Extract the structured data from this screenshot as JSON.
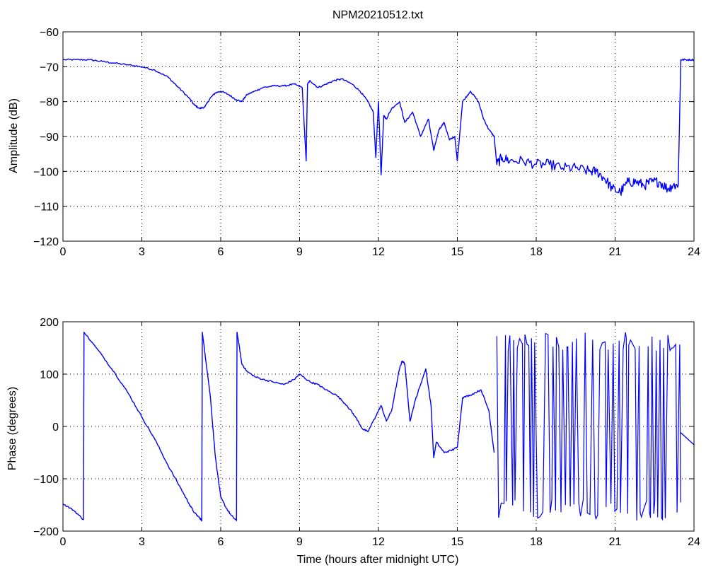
{
  "chart_data": [
    {
      "type": "line",
      "title": "NPM20210512.txt",
      "xlabel": "",
      "ylabel": "Amplitude (dB)",
      "xlim": [
        0,
        24
      ],
      "ylim": [
        -120,
        -60
      ],
      "xticks": [
        "0",
        "3",
        "6",
        "9",
        "12",
        "15",
        "18",
        "21",
        "24"
      ],
      "yticks": [
        "−60",
        "−70",
        "−80",
        "−90",
        "−100",
        "−110",
        "−120"
      ],
      "grid": true,
      "color": "#0000ff",
      "series": [
        {
          "x": [
            0,
            0.5,
            1.0,
            1.5,
            2.0,
            2.5,
            3.0,
            3.5,
            4.0,
            4.4,
            4.8,
            5.0,
            5.2,
            5.4,
            5.6,
            5.8,
            6.0,
            6.3,
            6.6,
            6.8,
            7.0,
            7.3,
            7.6,
            8.0,
            8.4,
            8.8,
            9.1,
            9.25,
            9.3,
            9.4,
            9.7,
            10.0,
            10.3,
            10.6,
            11.0,
            11.3,
            11.6,
            11.8,
            11.9,
            12.0,
            12.1,
            12.2,
            12.3,
            12.5,
            12.8,
            13.0,
            13.3,
            13.6,
            13.9,
            14.1,
            14.3,
            14.5,
            14.7,
            14.9,
            15.0,
            15.2,
            15.5,
            15.8,
            16.0,
            16.2,
            16.4,
            16.5,
            16.7,
            17.0,
            17.5,
            18.0,
            18.5,
            19.0,
            19.5,
            20.0,
            20.3,
            20.6,
            20.9,
            21.2,
            21.5,
            21.8,
            22.1,
            22.4,
            22.7,
            23.0,
            23.2,
            23.4,
            23.5,
            23.7,
            24.0
          ],
          "y": [
            -68,
            -68,
            -68,
            -68.5,
            -69,
            -69.5,
            -70,
            -71,
            -73,
            -76,
            -79,
            -81,
            -82,
            -81.5,
            -79,
            -77.5,
            -77,
            -78,
            -79.5,
            -80,
            -78,
            -77,
            -76,
            -75.5,
            -75.5,
            -75,
            -76,
            -97,
            -75,
            -74,
            -76,
            -75,
            -74,
            -73.5,
            -75,
            -77,
            -80,
            -83,
            -96,
            -80,
            -101,
            -84,
            -85,
            -82,
            -80,
            -86,
            -83,
            -90,
            -85,
            -94,
            -88,
            -86,
            -91,
            -90,
            -97,
            -80,
            -77,
            -80,
            -85,
            -88,
            -90,
            -98,
            -96,
            -97,
            -97,
            -98,
            -98,
            -99,
            -99,
            -100,
            -100,
            -102,
            -105,
            -106,
            -103,
            -103,
            -104,
            -103,
            -103,
            -105,
            -104,
            -104,
            -68,
            -68,
            -68
          ]
        }
      ]
    },
    {
      "type": "line",
      "title": "",
      "xlabel": "Time (hours after midnight UTC)",
      "ylabel": "Phase (degrees)",
      "xlim": [
        0,
        24
      ],
      "ylim": [
        -200,
        200
      ],
      "xticks": [
        "0",
        "3",
        "6",
        "9",
        "12",
        "15",
        "18",
        "21",
        "24"
      ],
      "yticks": [
        "200",
        "100",
        "0",
        "−100",
        "−200"
      ],
      "grid": true,
      "color": "#0000ff",
      "series": [
        {
          "x": [
            0,
            0.4,
            0.78,
            0.8,
            1.5,
            2.0,
            2.5,
            3.0,
            3.5,
            4.0,
            4.5,
            4.8,
            5.0,
            5.2,
            5.28,
            5.3,
            5.4,
            5.6,
            5.8,
            6.0,
            6.2,
            6.4,
            6.6,
            6.62,
            6.7,
            6.8,
            7.0,
            7.3,
            7.6,
            8.0,
            8.4,
            8.8,
            9.0,
            9.4,
            9.7,
            10.0,
            10.4,
            10.8,
            11.1,
            11.4,
            11.6,
            11.9,
            12.1,
            12.3,
            12.5,
            12.8,
            12.9,
            13.0,
            13.2,
            13.4,
            13.6,
            13.8,
            14.0,
            14.1,
            14.2,
            14.5,
            14.8,
            15.0,
            15.2,
            15.5,
            15.9,
            16.2,
            16.4
          ],
          "y": [
            -148,
            -160,
            -178,
            180,
            135,
            100,
            62,
            18,
            -25,
            -75,
            -120,
            -148,
            -165,
            -175,
            -180,
            180,
            140,
            60,
            -60,
            -135,
            -155,
            -170,
            -180,
            180,
            155,
            120,
            105,
            95,
            90,
            85,
            80,
            90,
            100,
            85,
            80,
            70,
            60,
            40,
            20,
            -5,
            -10,
            20,
            40,
            10,
            30,
            110,
            125,
            120,
            10,
            50,
            80,
            110,
            40,
            -60,
            -30,
            -50,
            -45,
            -40,
            55,
            60,
            70,
            30,
            -50
          ]
        }
      ],
      "noise_segment_range": [
        16.5,
        23.5
      ],
      "noise_segment_ylim": [
        -180,
        180
      ],
      "tail": {
        "x": [
          23.5,
          24
        ],
        "y": [
          -12,
          -35
        ]
      }
    }
  ]
}
